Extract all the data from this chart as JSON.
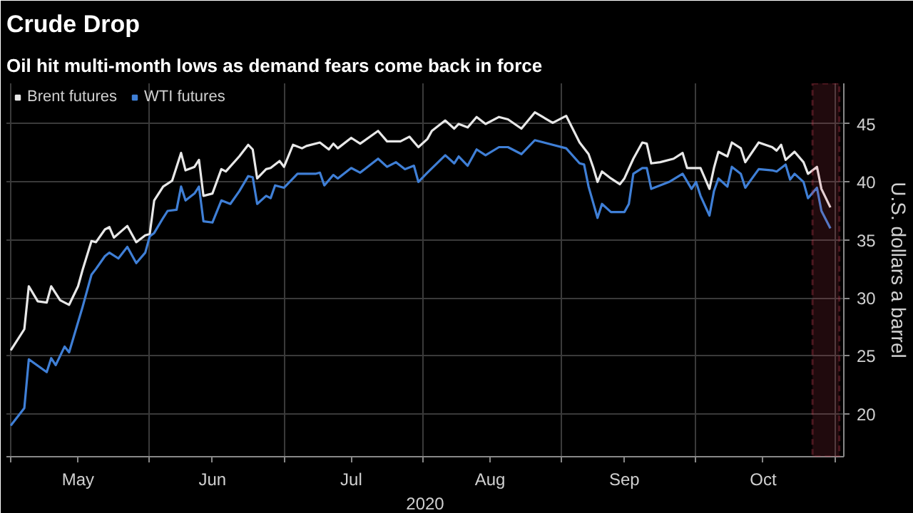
{
  "chart_data": {
    "type": "line",
    "title": "Crude Drop",
    "subtitle": "Oil hit multi-month lows as demand fears come back in force",
    "xlabel": "2020",
    "ylabel": "U.S. dollars a barrel",
    "xlim": [
      "2020-04-30",
      "2020-11-03"
    ],
    "ylim": [
      16.3,
      48.5
    ],
    "xticks": [
      {
        "value": "2020-05-01",
        "label": null
      },
      {
        "value": "2020-05-16",
        "label": "May"
      },
      {
        "value": "2020-06-01",
        "label": null
      },
      {
        "value": "2020-06-15",
        "label": "Jun"
      },
      {
        "value": "2020-07-01",
        "label": null
      },
      {
        "value": "2020-07-16",
        "label": "Jul"
      },
      {
        "value": "2020-08-01",
        "label": null
      },
      {
        "value": "2020-08-16",
        "label": "Aug"
      },
      {
        "value": "2020-09-01",
        "label": null
      },
      {
        "value": "2020-09-15",
        "label": "Sep"
      },
      {
        "value": "2020-10-01",
        "label": null
      },
      {
        "value": "2020-10-16",
        "label": "Oct"
      },
      {
        "value": "2020-11-01",
        "label": null
      }
    ],
    "yticks": [
      20,
      25,
      30,
      35,
      40,
      45
    ],
    "grid": true,
    "legend": "top left",
    "line_style": "solid",
    "bands": [
      {
        "axis": "x",
        "from": "2020-10-27",
        "to": "2020-11-02",
        "color": "#d6425a"
      }
    ],
    "series": [
      {
        "name": "Brent futures",
        "color": "#e8e8e8",
        "x": [
          "2020-05-01",
          "2020-05-04",
          "2020-05-05",
          "2020-05-07",
          "2020-05-09",
          "2020-05-10",
          "2020-05-12",
          "2020-05-14",
          "2020-05-16",
          "2020-05-17",
          "2020-05-19",
          "2020-05-20",
          "2020-05-22",
          "2020-05-23",
          "2020-05-24",
          "2020-05-27",
          "2020-05-29",
          "2020-05-31",
          "2020-06-01",
          "2020-06-02",
          "2020-06-04",
          "2020-06-06",
          "2020-06-08",
          "2020-06-09",
          "2020-06-11",
          "2020-06-12",
          "2020-06-13",
          "2020-06-15",
          "2020-06-17",
          "2020-06-18",
          "2020-06-21",
          "2020-06-23",
          "2020-06-24",
          "2020-06-25",
          "2020-06-27",
          "2020-06-28",
          "2020-06-30",
          "2020-07-01",
          "2020-07-03",
          "2020-07-05",
          "2020-07-06",
          "2020-07-09",
          "2020-07-11",
          "2020-07-12",
          "2020-07-13",
          "2020-07-16",
          "2020-07-18",
          "2020-07-22",
          "2020-07-24",
          "2020-07-27",
          "2020-07-29",
          "2020-07-31",
          "2020-08-02",
          "2020-08-03",
          "2020-08-06",
          "2020-08-08",
          "2020-08-09",
          "2020-08-11",
          "2020-08-13",
          "2020-08-15",
          "2020-08-18",
          "2020-08-20",
          "2020-08-23",
          "2020-08-26",
          "2020-08-30",
          "2020-08-31",
          "2020-09-02",
          "2020-09-05",
          "2020-09-07",
          "2020-09-08",
          "2020-09-09",
          "2020-09-10",
          "2020-09-12",
          "2020-09-14",
          "2020-09-15",
          "2020-09-17",
          "2020-09-19",
          "2020-09-20",
          "2020-09-21",
          "2020-09-23",
          "2020-09-26",
          "2020-09-28",
          "2020-09-29",
          "2020-10-02",
          "2020-10-04",
          "2020-10-05",
          "2020-10-06",
          "2020-10-08",
          "2020-10-09",
          "2020-10-11",
          "2020-10-12",
          "2020-10-15",
          "2020-10-18",
          "2020-10-19",
          "2020-10-20",
          "2020-10-21",
          "2020-10-23",
          "2020-10-25",
          "2020-10-26",
          "2020-10-28",
          "2020-10-29",
          "2020-10-31"
        ],
        "values": [
          25.5,
          27.3,
          31.0,
          29.7,
          29.6,
          31.0,
          29.8,
          29.4,
          31.0,
          32.4,
          34.9,
          34.8,
          35.9,
          36.1,
          35.2,
          36.2,
          34.8,
          35.4,
          35.5,
          38.4,
          39.6,
          40.1,
          42.5,
          41.0,
          41.3,
          41.9,
          38.8,
          39.0,
          41.1,
          40.9,
          42.2,
          43.2,
          42.8,
          40.3,
          41.1,
          41.2,
          41.8,
          41.3,
          43.2,
          42.9,
          43.1,
          43.4,
          42.8,
          43.3,
          42.9,
          43.8,
          43.3,
          44.4,
          43.5,
          43.5,
          43.9,
          43.0,
          43.7,
          44.4,
          45.3,
          44.6,
          45.0,
          44.7,
          45.6,
          45.0,
          45.6,
          45.4,
          44.6,
          46.0,
          45.1,
          45.3,
          45.7,
          43.4,
          42.4,
          41.3,
          40.0,
          40.9,
          40.3,
          39.8,
          40.3,
          42.0,
          43.4,
          43.3,
          41.6,
          41.7,
          42.0,
          42.5,
          41.2,
          41.2,
          39.4,
          41.2,
          42.6,
          42.2,
          43.4,
          42.9,
          41.7,
          43.4,
          43.0,
          42.7,
          43.2,
          41.9,
          42.6,
          41.7,
          40.7,
          41.3,
          39.4,
          37.8
        ]
      },
      {
        "name": "WTI futures",
        "color": "#3f7fd6",
        "x": [
          "2020-05-01",
          "2020-05-04",
          "2020-05-05",
          "2020-05-09",
          "2020-05-10",
          "2020-05-11",
          "2020-05-13",
          "2020-05-14",
          "2020-05-17",
          "2020-05-19",
          "2020-05-20",
          "2020-05-22",
          "2020-05-23",
          "2020-05-25",
          "2020-05-27",
          "2020-05-29",
          "2020-05-31",
          "2020-06-01",
          "2020-06-02",
          "2020-06-04",
          "2020-06-05",
          "2020-06-07",
          "2020-06-08",
          "2020-06-09",
          "2020-06-11",
          "2020-06-12",
          "2020-06-13",
          "2020-06-15",
          "2020-06-17",
          "2020-06-19",
          "2020-06-21",
          "2020-06-23",
          "2020-06-24",
          "2020-06-25",
          "2020-06-27",
          "2020-06-28",
          "2020-06-29",
          "2020-07-01",
          "2020-07-04",
          "2020-07-08",
          "2020-07-09",
          "2020-07-10",
          "2020-07-12",
          "2020-07-13",
          "2020-07-16",
          "2020-07-18",
          "2020-07-22",
          "2020-07-24",
          "2020-07-26",
          "2020-07-28",
          "2020-07-30",
          "2020-07-31",
          "2020-08-02",
          "2020-08-06",
          "2020-08-08",
          "2020-08-09",
          "2020-08-11",
          "2020-08-13",
          "2020-08-15",
          "2020-08-18",
          "2020-08-20",
          "2020-08-23",
          "2020-08-26",
          "2020-08-30",
          "2020-09-02",
          "2020-09-05",
          "2020-09-06",
          "2020-09-07",
          "2020-09-09",
          "2020-09-10",
          "2020-09-12",
          "2020-09-15",
          "2020-09-16",
          "2020-09-17",
          "2020-09-19",
          "2020-09-20",
          "2020-09-21",
          "2020-09-25",
          "2020-09-28",
          "2020-09-30",
          "2020-10-01",
          "2020-10-02",
          "2020-10-04",
          "2020-10-05",
          "2020-10-06",
          "2020-10-08",
          "2020-10-09",
          "2020-10-11",
          "2020-10-12",
          "2020-10-15",
          "2020-10-18",
          "2020-10-19",
          "2020-10-21",
          "2020-10-22",
          "2020-10-23",
          "2020-10-25",
          "2020-10-26",
          "2020-10-28",
          "2020-10-29",
          "2020-10-31"
        ],
        "values": [
          19.0,
          20.5,
          24.7,
          23.6,
          24.8,
          24.2,
          25.8,
          25.3,
          29.2,
          32.0,
          32.5,
          33.6,
          33.9,
          33.4,
          34.4,
          33.0,
          33.9,
          35.3,
          35.6,
          36.9,
          37.5,
          37.6,
          39.6,
          38.4,
          39.0,
          39.6,
          36.6,
          36.5,
          38.4,
          38.1,
          39.2,
          40.5,
          40.4,
          38.1,
          38.8,
          38.6,
          39.7,
          39.5,
          40.7,
          40.7,
          40.8,
          39.7,
          40.6,
          40.3,
          41.2,
          40.8,
          42.0,
          41.3,
          41.7,
          41.1,
          41.4,
          40.0,
          40.8,
          42.3,
          41.6,
          42.2,
          41.4,
          42.8,
          42.3,
          43.0,
          43.0,
          42.4,
          43.6,
          43.2,
          42.9,
          41.6,
          41.5,
          39.6,
          36.9,
          38.1,
          37.4,
          37.4,
          38.1,
          40.7,
          41.2,
          41.2,
          39.4,
          40.0,
          40.7,
          39.4,
          40.0,
          38.8,
          37.1,
          39.2,
          40.3,
          39.6,
          41.3,
          40.7,
          39.5,
          41.1,
          41.0,
          40.9,
          41.5,
          40.2,
          40.7,
          40.0,
          38.6,
          39.5,
          37.5,
          36.0
        ]
      }
    ]
  }
}
